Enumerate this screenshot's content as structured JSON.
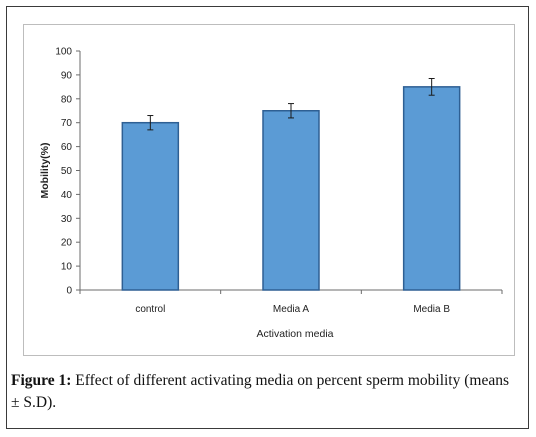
{
  "caption": {
    "label": "Figure 1:",
    "text": "Effect of different activating media on percent sperm mobility (means ± S.D)."
  },
  "colors": {
    "bar_fill": "#5b9bd5",
    "bar_stroke": "#2e5f93",
    "axis": "#6b6b6b"
  },
  "chart_data": {
    "type": "bar",
    "categories": [
      "control",
      "Media A",
      "Media B"
    ],
    "values": [
      70,
      75,
      85
    ],
    "error": [
      3,
      3,
      3.5
    ],
    "xlabel": "Activation media",
    "ylabel": "Mobility(%)",
    "ylim": [
      0,
      100
    ],
    "yticks": [
      "0",
      "10",
      "20",
      "30",
      "40",
      "50",
      "60",
      "70",
      "80",
      "90",
      "100"
    ],
    "grid": false,
    "legend": "none"
  }
}
